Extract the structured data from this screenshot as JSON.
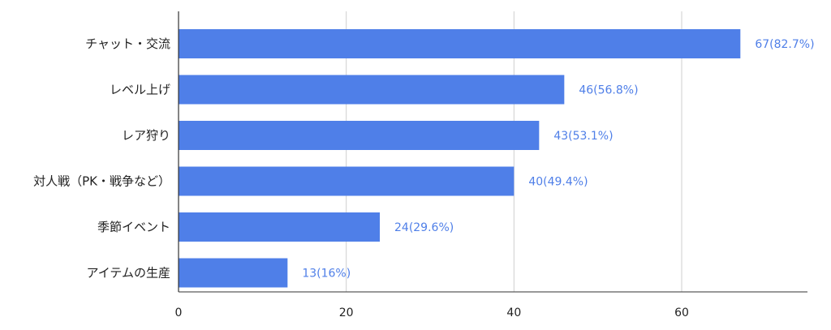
{
  "chart_data": {
    "type": "bar",
    "orientation": "horizontal",
    "categories": [
      "チャット・交流",
      "レベル上げ",
      "レア狩り",
      "対人戦（PK・戦争など）",
      "季節イベント",
      "アイテムの生産"
    ],
    "values": [
      67,
      46,
      43,
      40,
      24,
      13
    ],
    "data_labels": [
      "67(82.7%)",
      "46(56.8%)",
      "43(53.1%)",
      "40(49.4%)",
      "24(29.6%)",
      "13(16%)"
    ],
    "x_ticks": [
      0,
      20,
      40,
      60
    ],
    "xlim": [
      0,
      75
    ],
    "grid": true,
    "legend": "none",
    "colors": {
      "bar": "#4f7fe8",
      "label": "#4f7fe8",
      "grid": "#cfcfcf",
      "axis": "#333333",
      "text": "#222222"
    }
  }
}
